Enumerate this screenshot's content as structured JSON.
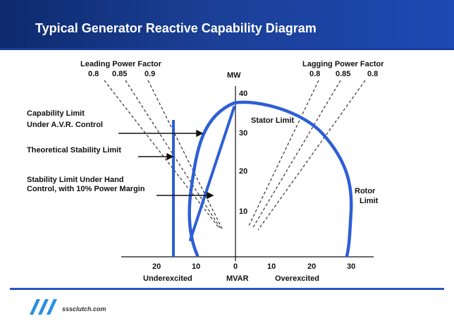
{
  "header": {
    "title": "Typical Generator Reactive Capability Diagram"
  },
  "diagram": {
    "leading_pf": {
      "title": "Leading Power Factor",
      "values": [
        "0.8",
        "0.85",
        "0.9"
      ]
    },
    "lagging_pf": {
      "title": "Lagging Power Factor",
      "values": [
        "0.8",
        "0.85",
        "0.8"
      ]
    },
    "y_axis": {
      "label": "MW",
      "ticks": [
        "40",
        "30",
        "20",
        "10"
      ]
    },
    "x_axis": {
      "ticks": [
        "20",
        "10",
        "0",
        "10",
        "20",
        "30"
      ],
      "label_left": "Underexcited",
      "label_center": "MVAR",
      "label_right": "Overexcited"
    },
    "labels": {
      "capability_limit_1": "Capability Limit",
      "capability_limit_2": "Under A.V.R. Control",
      "theoretical": "Theoretical Stability Limit",
      "hand_control_1": "Stability Limit Under Hand",
      "hand_control_2": "Control, with 10% Power Margin",
      "stator": "Stator Limit",
      "rotor_1": "Rotor",
      "rotor_2": "Limit"
    },
    "colors": {
      "curve": "#2d5fd6",
      "dashed": "#333333",
      "text": "#111111"
    }
  },
  "footer": {
    "url": "sssclutch.com"
  }
}
